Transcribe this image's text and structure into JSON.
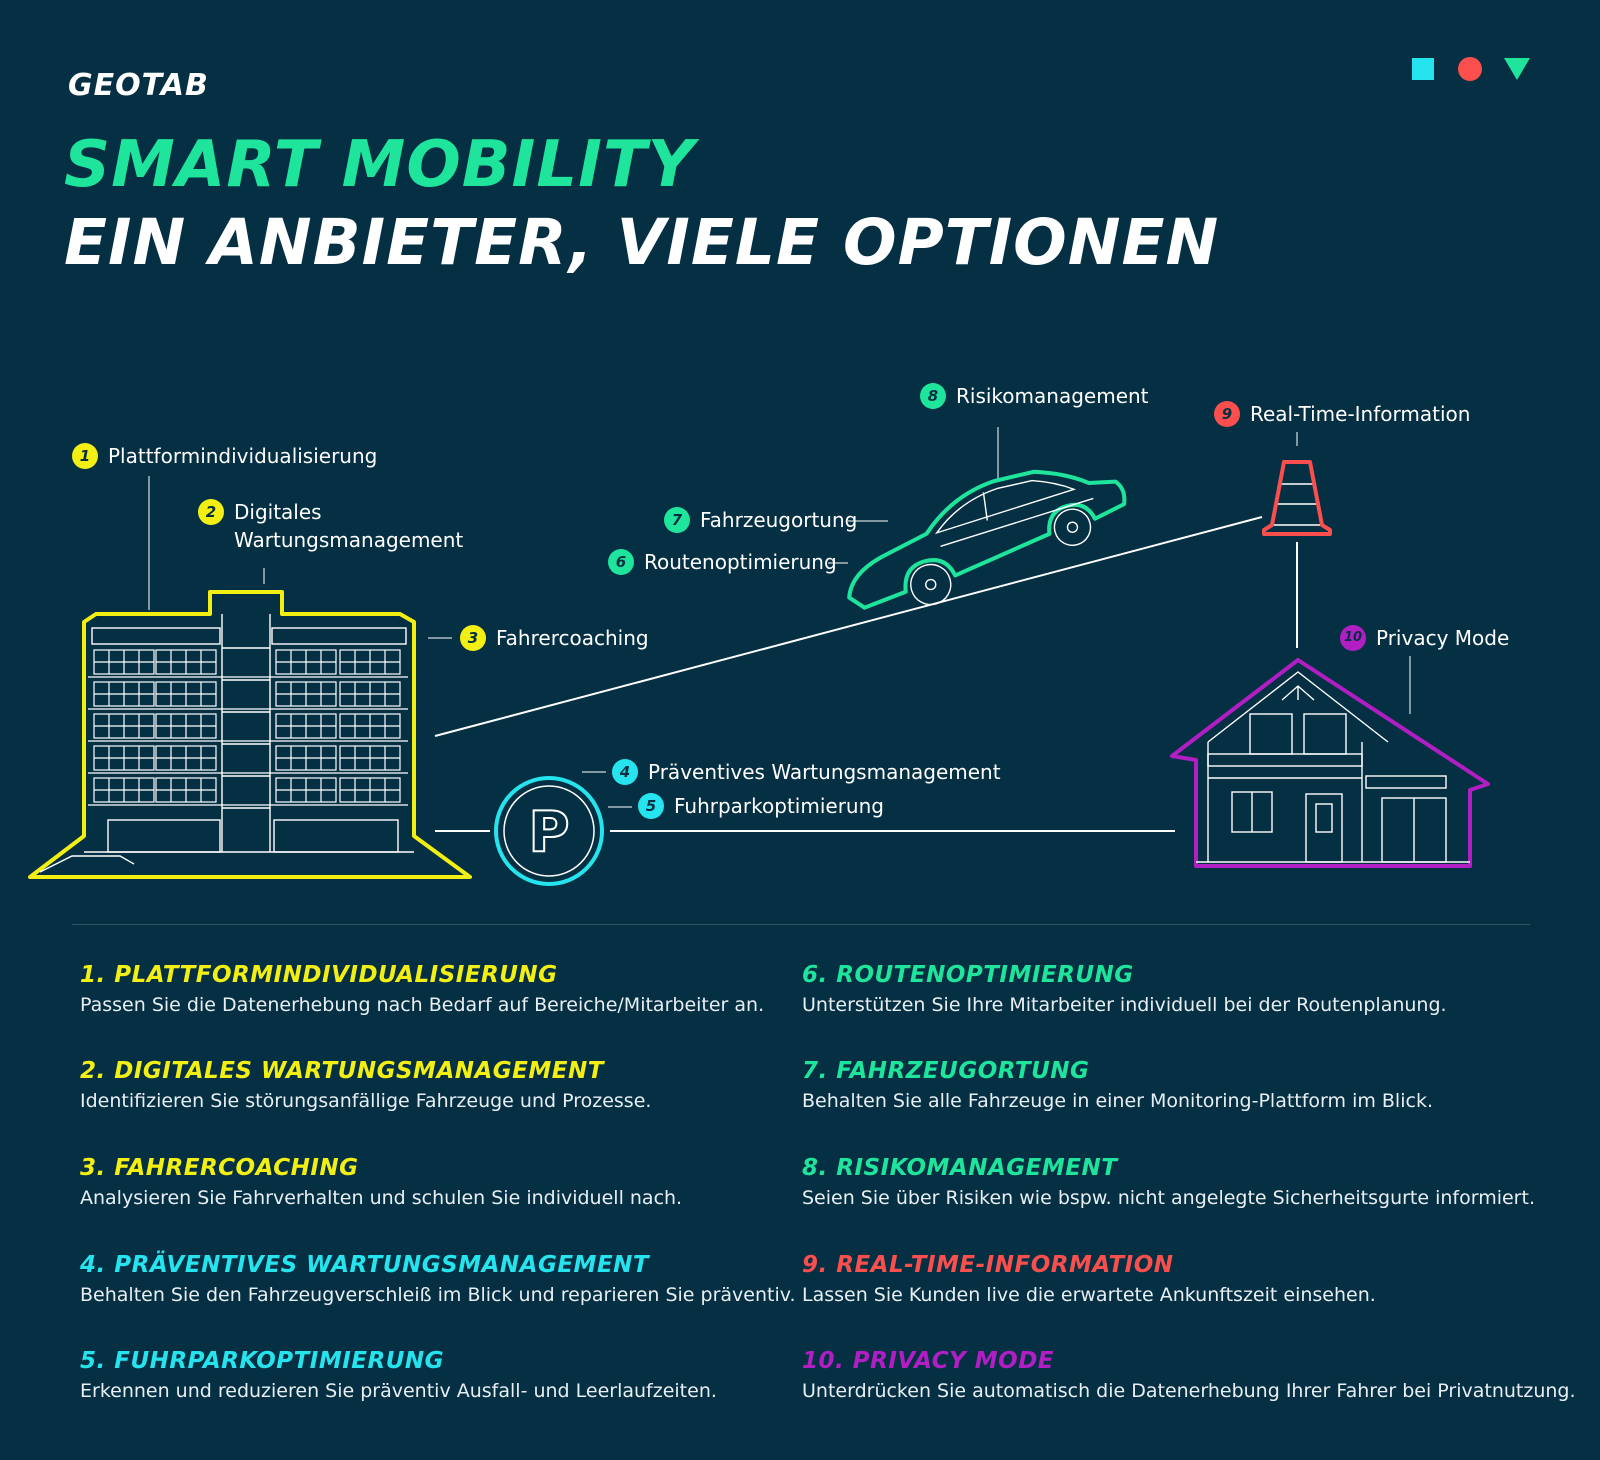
{
  "brand": {
    "logo": "GEOTAB"
  },
  "colors": {
    "background": "#053044",
    "yellow": "#f4ef13",
    "cyan": "#25e4ee",
    "green": "#1ee59b",
    "red": "#fa4f4d",
    "purple": "#b11ec4"
  },
  "header": {
    "title_line1": "SMART MOBILITY",
    "title_line2": "EIN ANBIETER, VIELE OPTIONEN"
  },
  "callouts": [
    {
      "num": "1",
      "label": "Plattformindividualisierung"
    },
    {
      "num": "2",
      "label": "Digitales",
      "label2": "Wartungsmanagement"
    },
    {
      "num": "3",
      "label": "Fahrercoaching"
    },
    {
      "num": "4",
      "label": "Präventives Wartungsmanagement"
    },
    {
      "num": "5",
      "label": "Fuhrparkoptimierung"
    },
    {
      "num": "6",
      "label": "Routenoptimierung"
    },
    {
      "num": "7",
      "label": "Fahrzeugortung"
    },
    {
      "num": "8",
      "label": "Risikomanagement"
    },
    {
      "num": "9",
      "label": "Real-Time-Information"
    },
    {
      "num": "10",
      "label": "Privacy Mode"
    }
  ],
  "illustration": {
    "parking_sign": "P"
  },
  "items": [
    {
      "title": "1. PLATTFORMINDIVIDUALISIERUNG",
      "text": "Passen Sie die Datenerhebung nach Bedarf auf Bereiche/Mitarbeiter an."
    },
    {
      "title": "2. DIGITALES WARTUNGSMANAGEMENT",
      "text": "Identifizieren Sie störungsanfällige Fahrzeuge und Prozesse."
    },
    {
      "title": "3. FAHRERCOACHING",
      "text": "Analysieren Sie Fahrverhalten und schulen Sie individuell nach."
    },
    {
      "title": "4. PRÄVENTIVES WARTUNGSMANAGEMENT",
      "text": "Behalten Sie den Fahrzeugverschleiß im Blick und reparieren Sie präventiv."
    },
    {
      "title": "5. FUHRPARKOPTIMIERUNG",
      "text": "Erkennen und reduzieren Sie präventiv Ausfall- und Leerlaufzeiten."
    },
    {
      "title": "6. ROUTENOPTIMIERUNG",
      "text": "Unterstützen Sie Ihre Mitarbeiter individuell bei der Routenplanung."
    },
    {
      "title": "7. FAHRZEUGORTUNG",
      "text": "Behalten Sie alle Fahrzeuge in einer Monitoring-Plattform im Blick."
    },
    {
      "title": "8. RISIKOMANAGEMENT",
      "text": "Seien Sie über Risiken wie bspw. nicht angelegte Sicherheitsgurte informiert."
    },
    {
      "title": "9. REAL-TIME-INFORMATION",
      "text": "Lassen Sie Kunden live die erwartete Ankunftszeit einsehen."
    },
    {
      "title": "10. PRIVACY MODE",
      "text": "Unterdrücken Sie automatisch die Datenerhebung Ihrer Fahrer bei Privatnutzung."
    }
  ]
}
